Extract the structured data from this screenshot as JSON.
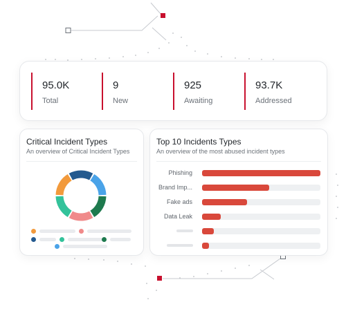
{
  "colors": {
    "accent_red": "#c8102e",
    "bar_red": "#d9483b",
    "border": "#e6e8eb"
  },
  "stats": [
    {
      "value": "95.0K",
      "label": "Total"
    },
    {
      "value": "9",
      "label": "New"
    },
    {
      "value": "925",
      "label": "Awaiting"
    },
    {
      "value": "93.7K",
      "label": "Addressed"
    }
  ],
  "critical_panel": {
    "title": "Critical Incident Types",
    "subtitle": "An overview of Critical Incident Types",
    "donut_colors": [
      "#4aa3e8",
      "#1e7a4e",
      "#f08a8a",
      "#33c29a",
      "#f29a3c",
      "#245a8f"
    ],
    "legend_colors": [
      "#f29a3c",
      "#f08a8a",
      "#245a8f",
      "#33c29a",
      "#1e7a4e",
      "#4aa3e8"
    ]
  },
  "top10_panel": {
    "title": "Top 10 Incidents Types",
    "subtitle": "An overview of the most abused incident types",
    "bars": [
      {
        "label": "Phishing",
        "value": 1.0
      },
      {
        "label": "Brand Imp...",
        "value": 0.57
      },
      {
        "label": "Fake ads",
        "value": 0.38
      },
      {
        "label": "Data Leak",
        "value": 0.16
      },
      {
        "label": "",
        "value": 0.1
      },
      {
        "label": "",
        "value": 0.06
      }
    ]
  }
}
